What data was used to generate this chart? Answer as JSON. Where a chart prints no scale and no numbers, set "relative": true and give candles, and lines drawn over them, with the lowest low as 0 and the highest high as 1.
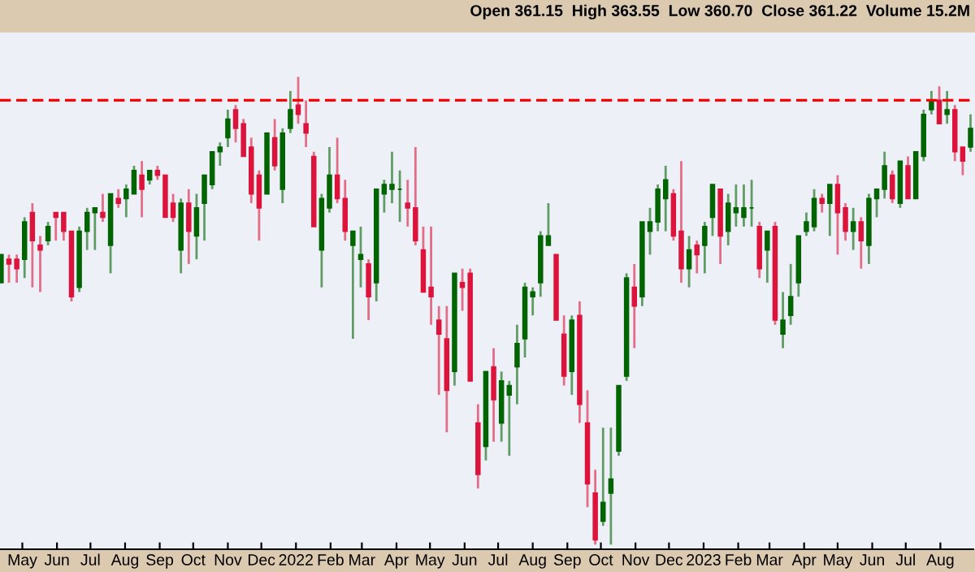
{
  "chart_data": {
    "type": "candlestick",
    "relative": true,
    "x": [
      "2021-04-12",
      "2021-04-19",
      "2021-04-26",
      "2021-05-03",
      "2021-05-10",
      "2021-05-17",
      "2021-05-24",
      "2021-05-31",
      "2021-06-07",
      "2021-06-14",
      "2021-06-21",
      "2021-06-28",
      "2021-07-05",
      "2021-07-12",
      "2021-07-19",
      "2021-07-26",
      "2021-08-02",
      "2021-08-09",
      "2021-08-16",
      "2021-08-23",
      "2021-08-30",
      "2021-09-06",
      "2021-09-13",
      "2021-09-20",
      "2021-09-27",
      "2021-10-04",
      "2021-10-11",
      "2021-10-18",
      "2021-10-25",
      "2021-11-01",
      "2021-11-08",
      "2021-11-15",
      "2021-11-22",
      "2021-11-29",
      "2021-12-06",
      "2021-12-13",
      "2021-12-20",
      "2021-12-27",
      "2022-01-03",
      "2022-01-10",
      "2022-01-17",
      "2022-01-24",
      "2022-01-31",
      "2022-02-07",
      "2022-02-14",
      "2022-02-21",
      "2022-02-28",
      "2022-03-07",
      "2022-03-14",
      "2022-03-21",
      "2022-03-28",
      "2022-04-04",
      "2022-04-11",
      "2022-04-18",
      "2022-04-25",
      "2022-05-02",
      "2022-05-09",
      "2022-05-16",
      "2022-05-23",
      "2022-05-30",
      "2022-06-06",
      "2022-06-13",
      "2022-06-20",
      "2022-06-27",
      "2022-07-04",
      "2022-07-11",
      "2022-07-18",
      "2022-07-25",
      "2022-08-01",
      "2022-08-08",
      "2022-08-15",
      "2022-08-22",
      "2022-08-29",
      "2022-09-05",
      "2022-09-12",
      "2022-09-19",
      "2022-09-26",
      "2022-10-03",
      "2022-10-10",
      "2022-10-17",
      "2022-10-24",
      "2022-10-31",
      "2022-11-07",
      "2022-11-14",
      "2022-11-21",
      "2022-11-28",
      "2022-12-05",
      "2022-12-12",
      "2022-12-19",
      "2022-12-26",
      "2023-01-02",
      "2023-01-09",
      "2023-01-16",
      "2023-01-23",
      "2023-01-30",
      "2023-02-06",
      "2023-02-13",
      "2023-02-20",
      "2023-02-27",
      "2023-03-06",
      "2023-03-13",
      "2023-03-20",
      "2023-03-27",
      "2023-04-03",
      "2023-04-10",
      "2023-04-17",
      "2023-04-24",
      "2023-05-01",
      "2023-05-08",
      "2023-05-15",
      "2023-05-22",
      "2023-05-29",
      "2023-06-05",
      "2023-06-12",
      "2023-06-19",
      "2023-06-26",
      "2023-07-03",
      "2023-07-10",
      "2023-07-17",
      "2023-07-24",
      "2023-07-31",
      "2023-08-07",
      "2023-08-14",
      "2023-08-21",
      "2023-08-28"
    ],
    "ohlc": [
      [
        0.56,
        0.62,
        0.56,
        0.62
      ],
      [
        0.61,
        0.62,
        0.56,
        0.6
      ],
      [
        0.61,
        0.62,
        0.56,
        0.59
      ],
      [
        0.61,
        0.7,
        0.57,
        0.69
      ],
      [
        0.71,
        0.73,
        0.55,
        0.65
      ],
      [
        0.64,
        0.66,
        0.54,
        0.63
      ],
      [
        0.65,
        0.69,
        0.64,
        0.68
      ],
      [
        0.71,
        0.71,
        0.65,
        0.7
      ],
      [
        0.71,
        0.71,
        0.65,
        0.67
      ],
      [
        0.67,
        0.67,
        0.52,
        0.53
      ],
      [
        0.55,
        0.68,
        0.54,
        0.67
      ],
      [
        0.67,
        0.72,
        0.63,
        0.71
      ],
      [
        0.71,
        0.72,
        0.63,
        0.72
      ],
      [
        0.71,
        0.75,
        0.69,
        0.7
      ],
      [
        0.64,
        0.75,
        0.58,
        0.75
      ],
      [
        0.74,
        0.76,
        0.72,
        0.73
      ],
      [
        0.74,
        0.77,
        0.7,
        0.76
      ],
      [
        0.75,
        0.81,
        0.75,
        0.8
      ],
      [
        0.79,
        0.82,
        0.7,
        0.76
      ],
      [
        0.78,
        0.8,
        0.77,
        0.8
      ],
      [
        0.8,
        0.81,
        0.78,
        0.79
      ],
      [
        0.79,
        0.79,
        0.7,
        0.7
      ],
      [
        0.73,
        0.75,
        0.69,
        0.7
      ],
      [
        0.63,
        0.74,
        0.58,
        0.73
      ],
      [
        0.73,
        0.76,
        0.6,
        0.67
      ],
      [
        0.66,
        0.75,
        0.61,
        0.72
      ],
      [
        0.73,
        0.79,
        0.65,
        0.79
      ],
      [
        0.77,
        0.84,
        0.76,
        0.84
      ],
      [
        0.84,
        0.86,
        0.81,
        0.85
      ],
      [
        0.87,
        0.93,
        0.85,
        0.91
      ],
      [
        0.93,
        0.94,
        0.86,
        0.89
      ],
      [
        0.9,
        0.91,
        0.83,
        0.83
      ],
      [
        0.85,
        0.87,
        0.73,
        0.75
      ],
      [
        0.79,
        0.8,
        0.65,
        0.72
      ],
      [
        0.75,
        0.88,
        0.75,
        0.88
      ],
      [
        0.87,
        0.91,
        0.8,
        0.81
      ],
      [
        0.76,
        0.89,
        0.73,
        0.88
      ],
      [
        0.89,
        0.97,
        0.88,
        0.93
      ],
      [
        0.94,
        1.0,
        0.9,
        0.92
      ],
      [
        0.9,
        0.95,
        0.85,
        0.88
      ],
      [
        0.83,
        0.84,
        0.68,
        0.68
      ],
      [
        0.63,
        0.75,
        0.55,
        0.74
      ],
      [
        0.72,
        0.85,
        0.71,
        0.79
      ],
      [
        0.79,
        0.87,
        0.73,
        0.74
      ],
      [
        0.74,
        0.78,
        0.65,
        0.67
      ],
      [
        0.64,
        0.67,
        0.44,
        0.67
      ],
      [
        0.61,
        0.68,
        0.55,
        0.62
      ],
      [
        0.6,
        0.61,
        0.48,
        0.53
      ],
      [
        0.56,
        0.76,
        0.52,
        0.76
      ],
      [
        0.75,
        0.78,
        0.71,
        0.77
      ],
      [
        0.76,
        0.84,
        0.73,
        0.77
      ],
      [
        0.76,
        0.8,
        0.69,
        0.76
      ],
      [
        0.73,
        0.78,
        0.68,
        0.72
      ],
      [
        0.72,
        0.85,
        0.64,
        0.65
      ],
      [
        0.63,
        0.68,
        0.54,
        0.54
      ],
      [
        0.55,
        0.68,
        0.47,
        0.53
      ],
      [
        0.48,
        0.51,
        0.32,
        0.45
      ],
      [
        0.44,
        0.51,
        0.24,
        0.33
      ],
      [
        0.37,
        0.58,
        0.34,
        0.58
      ],
      [
        0.56,
        0.59,
        0.5,
        0.55
      ],
      [
        0.58,
        0.59,
        0.35,
        0.35
      ],
      [
        0.26,
        0.3,
        0.12,
        0.15
      ],
      [
        0.21,
        0.37,
        0.18,
        0.37
      ],
      [
        0.38,
        0.42,
        0.22,
        0.31
      ],
      [
        0.26,
        0.37,
        0.22,
        0.35
      ],
      [
        0.32,
        0.35,
        0.19,
        0.34
      ],
      [
        0.38,
        0.47,
        0.3,
        0.43
      ],
      [
        0.44,
        0.56,
        0.4,
        0.55
      ],
      [
        0.53,
        0.55,
        0.49,
        0.54
      ],
      [
        0.56,
        0.67,
        0.53,
        0.66
      ],
      [
        0.64,
        0.73,
        0.64,
        0.66
      ],
      [
        0.62,
        0.62,
        0.48,
        0.48
      ],
      [
        0.45,
        0.49,
        0.34,
        0.36
      ],
      [
        0.37,
        0.49,
        0.32,
        0.48
      ],
      [
        0.49,
        0.52,
        0.26,
        0.3
      ],
      [
        0.26,
        0.33,
        0.08,
        0.13
      ],
      [
        0.11,
        0.16,
        0.0,
        0.01
      ],
      [
        0.05,
        0.25,
        0.04,
        0.09
      ],
      [
        0.11,
        0.25,
        0.0,
        0.14
      ],
      [
        0.2,
        0.34,
        0.19,
        0.34
      ],
      [
        0.36,
        0.58,
        0.35,
        0.57
      ],
      [
        0.55,
        0.6,
        0.42,
        0.51
      ],
      [
        0.53,
        0.69,
        0.51,
        0.69
      ],
      [
        0.67,
        0.72,
        0.62,
        0.69
      ],
      [
        0.69,
        0.77,
        0.67,
        0.76
      ],
      [
        0.74,
        0.81,
        0.67,
        0.78
      ],
      [
        0.75,
        0.76,
        0.65,
        0.66
      ],
      [
        0.67,
        0.82,
        0.56,
        0.59
      ],
      [
        0.59,
        0.66,
        0.55,
        0.63
      ],
      [
        0.64,
        0.65,
        0.58,
        0.62
      ],
      [
        0.64,
        0.69,
        0.58,
        0.68
      ],
      [
        0.7,
        0.77,
        0.66,
        0.77
      ],
      [
        0.76,
        0.76,
        0.6,
        0.66
      ],
      [
        0.67,
        0.75,
        0.64,
        0.73
      ],
      [
        0.71,
        0.77,
        0.68,
        0.72
      ],
      [
        0.7,
        0.77,
        0.68,
        0.72
      ],
      [
        0.72,
        0.78,
        0.68,
        0.72
      ],
      [
        0.68,
        0.69,
        0.57,
        0.59
      ],
      [
        0.63,
        0.67,
        0.56,
        0.67
      ],
      [
        0.68,
        0.69,
        0.47,
        0.48
      ],
      [
        0.45,
        0.54,
        0.42,
        0.48
      ],
      [
        0.49,
        0.6,
        0.47,
        0.53
      ],
      [
        0.56,
        0.66,
        0.53,
        0.66
      ],
      [
        0.67,
        0.71,
        0.66,
        0.69
      ],
      [
        0.68,
        0.76,
        0.67,
        0.74
      ],
      [
        0.74,
        0.75,
        0.71,
        0.73
      ],
      [
        0.73,
        0.77,
        0.66,
        0.77
      ],
      [
        0.77,
        0.79,
        0.62,
        0.71
      ],
      [
        0.72,
        0.73,
        0.65,
        0.67
      ],
      [
        0.67,
        0.72,
        0.63,
        0.69
      ],
      [
        0.69,
        0.7,
        0.59,
        0.65
      ],
      [
        0.64,
        0.75,
        0.6,
        0.74
      ],
      [
        0.74,
        0.76,
        0.7,
        0.76
      ],
      [
        0.76,
        0.84,
        0.74,
        0.81
      ],
      [
        0.79,
        0.8,
        0.73,
        0.74
      ],
      [
        0.73,
        0.82,
        0.72,
        0.82
      ],
      [
        0.81,
        0.83,
        0.74,
        0.74
      ],
      [
        0.74,
        0.84,
        0.74,
        0.84
      ],
      [
        0.83,
        0.93,
        0.82,
        0.92
      ],
      [
        0.93,
        0.97,
        0.92,
        0.95
      ],
      [
        0.95,
        0.98,
        0.9,
        0.9
      ],
      [
        0.92,
        0.97,
        0.9,
        0.93
      ],
      [
        0.93,
        0.94,
        0.82,
        0.84
      ],
      [
        0.85,
        0.85,
        0.79,
        0.82
      ],
      [
        0.85,
        0.92,
        0.84,
        0.89
      ]
    ],
    "xlim": [
      "2021-04-11",
      "2023-09-01"
    ],
    "xticks": [
      {
        "value": "2021-05-01",
        "label": "May"
      },
      {
        "value": "2021-06-01",
        "label": "Jun"
      },
      {
        "value": "2021-07-01",
        "label": "Jul"
      },
      {
        "value": "2021-08-01",
        "label": "Aug"
      },
      {
        "value": "2021-09-01",
        "label": "Sep"
      },
      {
        "value": "2021-10-01",
        "label": "Oct"
      },
      {
        "value": "2021-11-01",
        "label": "Nov"
      },
      {
        "value": "2021-12-01",
        "label": "Dec"
      },
      {
        "value": "2022-01-01",
        "label": "2022"
      },
      {
        "value": "2022-02-01",
        "label": "Feb"
      },
      {
        "value": "2022-03-01",
        "label": "Mar"
      },
      {
        "value": "2022-04-01",
        "label": "Apr"
      },
      {
        "value": "2022-05-01",
        "label": "May"
      },
      {
        "value": "2022-06-01",
        "label": "Jun"
      },
      {
        "value": "2022-07-01",
        "label": "Jul"
      },
      {
        "value": "2022-08-01",
        "label": "Aug"
      },
      {
        "value": "2022-09-01",
        "label": "Sep"
      },
      {
        "value": "2022-10-01",
        "label": "Oct"
      },
      {
        "value": "2022-11-01",
        "label": "Nov"
      },
      {
        "value": "2022-12-01",
        "label": "Dec"
      },
      {
        "value": "2023-01-01",
        "label": "2023"
      },
      {
        "value": "2023-02-01",
        "label": "Feb"
      },
      {
        "value": "2023-03-01",
        "label": "Mar"
      },
      {
        "value": "2023-04-01",
        "label": "Apr"
      },
      {
        "value": "2023-05-01",
        "label": "May"
      },
      {
        "value": "2023-06-01",
        "label": "Jun"
      },
      {
        "value": "2023-07-01",
        "label": "Jul"
      },
      {
        "value": "2023-08-01",
        "label": "Aug"
      }
    ],
    "tick_labels": "x",
    "ref_lines": [
      {
        "axis": "y",
        "value": 0.95,
        "color": "#ff0000",
        "line_style": "dashed"
      }
    ],
    "annotations": [
      "Open 361.15  High 363.55  Low 360.70  Close 361.22  Volume 15.2M"
    ]
  }
}
